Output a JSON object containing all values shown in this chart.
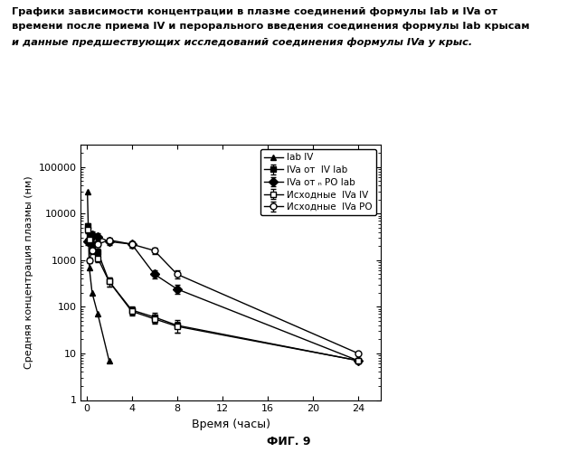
{
  "title_lines": [
    "Графики зависимости концентрации в плазме соединений формулы Iab и IVa от",
    "времени после приема IV и перорального введения соединения формулы Iab крысам",
    "и данные предшествующих исследований соединения формулы IVa у крыс."
  ],
  "xlabel": "Время (часы)",
  "ylabel": "Средняя концентрация плазмы (нм)",
  "fig_label": "ФИГ. 9",
  "xlim": [
    -0.5,
    26
  ],
  "ylim_log": [
    1,
    300000
  ],
  "xticks": [
    0,
    4,
    8,
    12,
    16,
    20,
    24
  ],
  "yticks": [
    1,
    10,
    100,
    1000,
    10000,
    100000
  ],
  "series": [
    {
      "label": "Iab IV",
      "x": [
        0.083,
        0.25,
        0.5,
        1.0,
        2.0
      ],
      "y": [
        30000,
        700,
        200,
        70,
        7
      ],
      "yerr": [
        null,
        null,
        null,
        null,
        null
      ],
      "marker": "^",
      "linestyle": "-",
      "color": "#000000",
      "fillstyle": "full"
    },
    {
      "label": "IVa от  IV Iab",
      "x": [
        0.083,
        0.25,
        0.5,
        1.0,
        2.0,
        4.0,
        6.0,
        8.0,
        24.0
      ],
      "y": [
        5500,
        3500,
        2200,
        1500,
        350,
        85,
        60,
        40,
        7
      ],
      "yerr": [
        600,
        500,
        350,
        250,
        80,
        18,
        15,
        12,
        null
      ],
      "marker": "s",
      "linestyle": "-",
      "color": "#000000",
      "fillstyle": "full"
    },
    {
      "label": "IVa от ₙ PO Iab",
      "x": [
        0.083,
        0.25,
        0.5,
        1.0,
        2.0,
        4.0,
        6.0,
        8.0,
        24.0
      ],
      "y": [
        2500,
        2800,
        3500,
        3200,
        2500,
        2200,
        500,
        240,
        7
      ],
      "yerr": [
        350,
        450,
        600,
        500,
        400,
        350,
        100,
        50,
        null
      ],
      "marker": "D",
      "linestyle": "-",
      "color": "#000000",
      "fillstyle": "full"
    },
    {
      "label": "Исходные  IVa IV",
      "x": [
        0.083,
        0.25,
        0.5,
        1.0,
        2.0,
        4.0,
        6.0,
        8.0,
        24.0
      ],
      "y": [
        4500,
        2800,
        1600,
        1100,
        350,
        80,
        55,
        38,
        7
      ],
      "yerr": [
        700,
        500,
        250,
        180,
        80,
        15,
        12,
        10,
        null
      ],
      "marker": "s",
      "linestyle": "-",
      "color": "#000000",
      "fillstyle": "none"
    },
    {
      "label": "Исходные  IVa PO",
      "x": [
        0.25,
        0.5,
        1.0,
        2.0,
        4.0,
        6.0,
        8.0,
        24.0
      ],
      "y": [
        1000,
        1600,
        2200,
        2700,
        2200,
        1600,
        500,
        10
      ],
      "yerr": [
        150,
        200,
        300,
        380,
        320,
        220,
        100,
        null
      ],
      "marker": "o",
      "linestyle": "-",
      "color": "#000000",
      "fillstyle": "none"
    }
  ]
}
